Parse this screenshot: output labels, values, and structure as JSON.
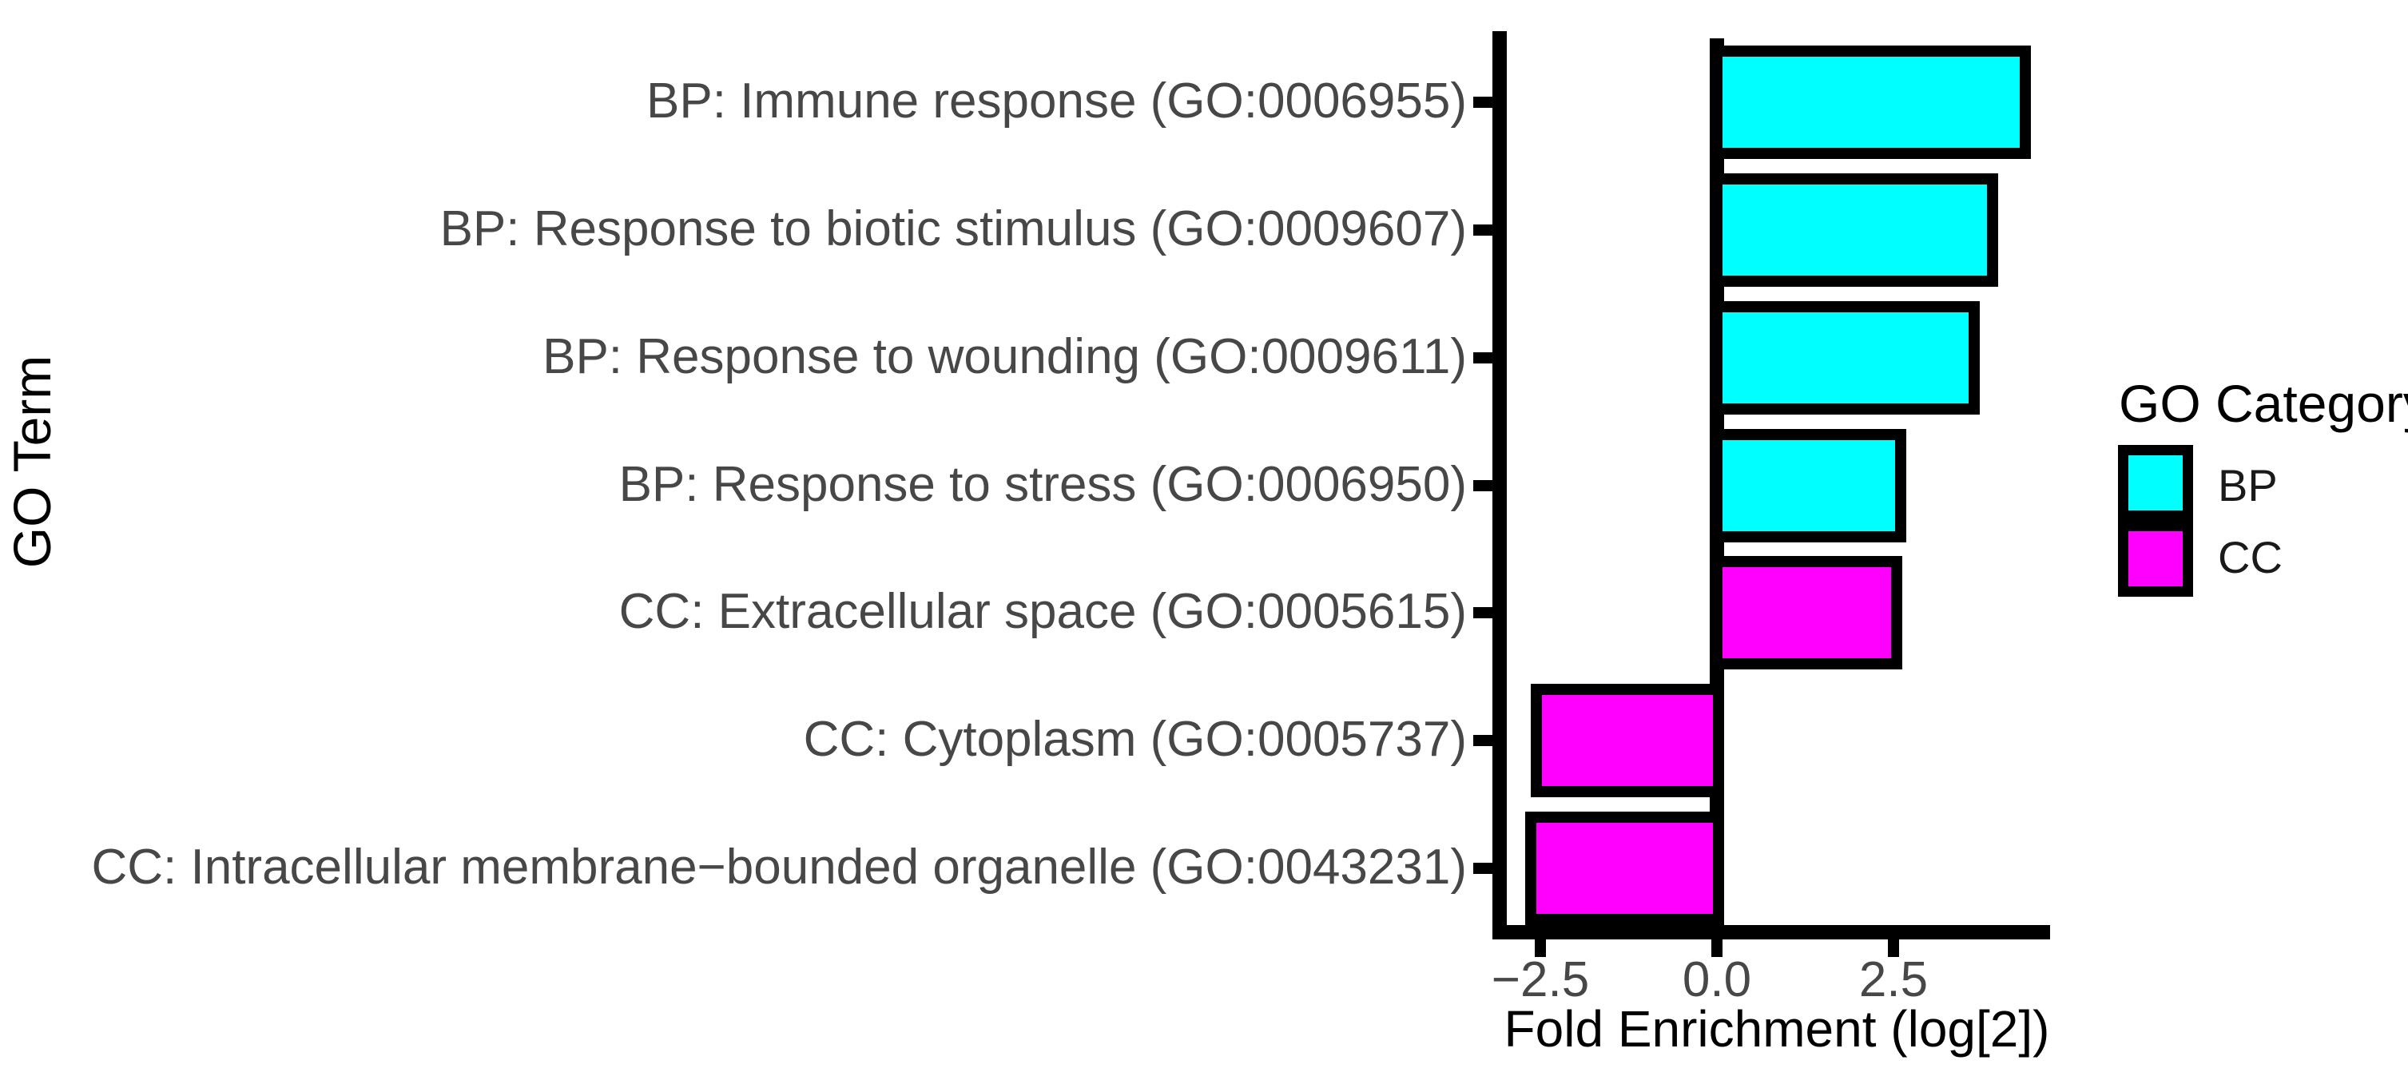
{
  "chart_data": {
    "type": "bar",
    "orientation": "horizontal",
    "title": "",
    "xlabel": "Fold Enrichment (log[2])",
    "ylabel": "GO Term",
    "categories": [
      "BP: Immune response (GO:0006955)",
      "BP: Response to biotic stimulus (GO:0009607)",
      "BP: Response to wounding (GO:0009611)",
      "BP: Response to stress (GO:0006950)",
      "CC: Extracellular space (GO:0005615)",
      "CC: Cytoplasm (GO:0005737)",
      "CC: Intracellular membrane−bounded organelle (GO:0043231)"
    ],
    "values": [
      4.45,
      3.98,
      3.72,
      2.68,
      2.63,
      -2.64,
      -2.72
    ],
    "groups": [
      "BP",
      "BP",
      "BP",
      "BP",
      "CC",
      "CC",
      "CC"
    ],
    "group_colors": {
      "BP": "#00FFFF",
      "CC": "#FF00FF"
    },
    "bar_outline_color": "#000000",
    "x_ticks": [
      {
        "label": "−2.5",
        "value": -2.5
      },
      {
        "label": "0.0",
        "value": 0
      },
      {
        "label": "2.5",
        "value": 2.5
      }
    ],
    "xlim": [
      -3.08,
      4.72
    ],
    "grid": false,
    "zero_line": true,
    "legend": {
      "title": "GO Category",
      "position": "right",
      "entries": [
        {
          "label": "BP",
          "color": "#00FFFF"
        },
        {
          "label": "CC",
          "color": "#FF00FF"
        }
      ]
    }
  }
}
